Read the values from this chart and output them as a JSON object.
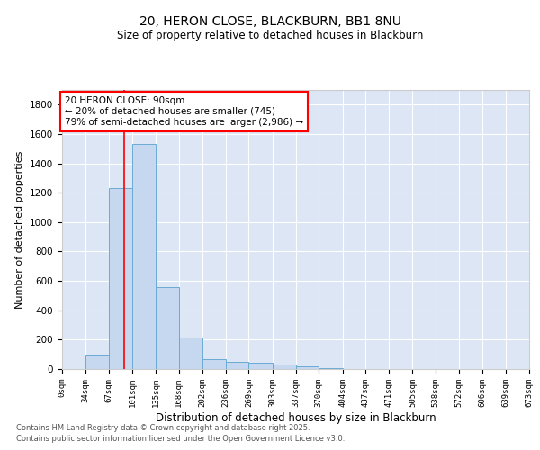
{
  "title1": "20, HERON CLOSE, BLACKBURN, BB1 8NU",
  "title2": "Size of property relative to detached houses in Blackburn",
  "xlabel": "Distribution of detached houses by size in Blackburn",
  "ylabel": "Number of detached properties",
  "bin_edges": [
    0,
    34,
    67,
    101,
    135,
    168,
    202,
    236,
    269,
    303,
    337,
    370,
    404,
    437,
    471,
    505,
    538,
    572,
    606,
    639,
    673
  ],
  "bar_heights": [
    0,
    100,
    1230,
    1530,
    560,
    215,
    70,
    50,
    40,
    30,
    18,
    5,
    2,
    0,
    0,
    0,
    0,
    0,
    0,
    0
  ],
  "bar_color": "#c5d8f0",
  "bar_edge_color": "#6aaad4",
  "background_color": "#dce6f5",
  "red_line_x": 90,
  "ylim": [
    0,
    1900
  ],
  "annotation_text": "20 HERON CLOSE: 90sqm\n← 20% of detached houses are smaller (745)\n79% of semi-detached houses are larger (2,986) →",
  "footer1": "Contains HM Land Registry data © Crown copyright and database right 2025.",
  "footer2": "Contains public sector information licensed under the Open Government Licence v3.0.",
  "tick_labels": [
    "0sqm",
    "34sqm",
    "67sqm",
    "101sqm",
    "135sqm",
    "168sqm",
    "202sqm",
    "236sqm",
    "269sqm",
    "303sqm",
    "337sqm",
    "370sqm",
    "404sqm",
    "437sqm",
    "471sqm",
    "505sqm",
    "538sqm",
    "572sqm",
    "606sqm",
    "639sqm",
    "673sqm"
  ],
  "ytick_labels": [
    "0",
    "200",
    "400",
    "600",
    "800",
    "1000",
    "1200",
    "1400",
    "1600",
    "1800"
  ],
  "ytick_values": [
    0,
    200,
    400,
    600,
    800,
    1000,
    1200,
    1400,
    1600,
    1800
  ]
}
